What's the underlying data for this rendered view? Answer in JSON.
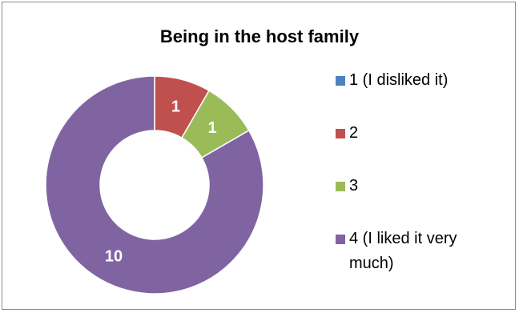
{
  "chart_data": {
    "type": "pie",
    "donut": true,
    "title": "Being in the host family",
    "categories": [
      "1 (I disliked it)",
      "2",
      "3",
      "4 (I liked it very much)"
    ],
    "values": [
      0,
      1,
      1,
      10
    ],
    "data_labels": [
      "",
      "1",
      "1",
      "10"
    ],
    "colors": [
      "#4f81bd",
      "#c0504d",
      "#9bbb59",
      "#8064a2"
    ],
    "legend_position": "right"
  }
}
